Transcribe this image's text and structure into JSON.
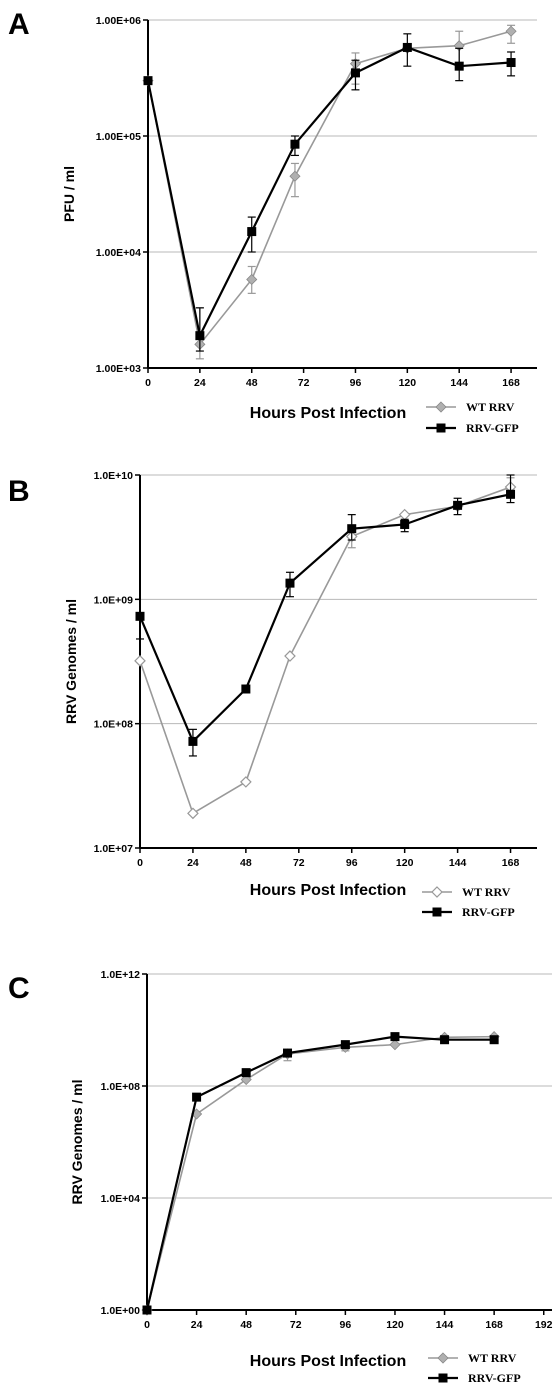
{
  "chart_data": [
    {
      "panel": "A",
      "type": "line",
      "y_scale": "log",
      "ylim": [
        1000,
        1000000
      ],
      "y_ticks": [
        1000,
        10000,
        100000,
        1000000
      ],
      "y_tick_labels": [
        "1.00E+03",
        "1.00E+04",
        "1.00E+05",
        "1.00E+06"
      ],
      "xlim": [
        0,
        180
      ],
      "x_ticks": [
        0,
        24,
        48,
        72,
        96,
        120,
        144,
        168
      ],
      "x_tick_labels": [
        "0",
        "24",
        "48",
        "72",
        "96",
        "120",
        "144",
        "168"
      ],
      "xlabel": "Hours Post Infection",
      "ylabel": "PFU / ml",
      "grid": true,
      "legend_position": "bottom-right",
      "series": [
        {
          "name": "WT RRV",
          "color": "#999999",
          "marker": "diamond",
          "x": [
            0,
            24,
            48,
            68,
            96,
            120,
            144,
            168
          ],
          "y": [
            300000,
            1600,
            5800,
            45000,
            420000,
            570000,
            600000,
            800000
          ],
          "err_low": [
            null,
            1200,
            4400,
            30000,
            280000,
            null,
            400000,
            630000
          ],
          "err_high": [
            null,
            3300,
            7500,
            58000,
            520000,
            null,
            800000,
            900000
          ]
        },
        {
          "name": "RRV-GFP",
          "color": "#000000",
          "marker": "square",
          "x": [
            0,
            24,
            48,
            68,
            96,
            120,
            144,
            168
          ],
          "y": [
            300000,
            1900,
            15000,
            85000,
            350000,
            580000,
            400000,
            430000
          ],
          "err_low": [
            null,
            1400,
            10000,
            68000,
            250000,
            400000,
            300000,
            330000
          ],
          "err_high": [
            null,
            3300,
            20000,
            100000,
            450000,
            760000,
            570000,
            530000
          ]
        }
      ]
    },
    {
      "panel": "B",
      "type": "line",
      "y_scale": "log",
      "ylim": [
        10000000,
        10000000000
      ],
      "y_ticks": [
        10000000,
        100000000,
        1000000000,
        10000000000
      ],
      "y_tick_labels": [
        "1.0E+07",
        "1.0E+08",
        "1.0E+09",
        "1.0E+10"
      ],
      "xlim": [
        0,
        180
      ],
      "x_ticks": [
        0,
        24,
        48,
        72,
        96,
        120,
        144,
        168
      ],
      "x_tick_labels": [
        "0",
        "24",
        "48",
        "72",
        "96",
        "120",
        "144",
        "168"
      ],
      "xlabel": "Hours Post Infection",
      "ylabel": "RRV Genomes / ml",
      "grid": true,
      "legend_position": "bottom-right",
      "series": [
        {
          "name": "WT RRV",
          "color": "#999999",
          "marker": "diamond-open",
          "x": [
            0,
            24,
            48,
            68,
            96,
            120,
            144,
            168
          ],
          "y": [
            320000000,
            19000000,
            34000000,
            350000000,
            3200000000,
            4800000000,
            5600000000,
            8000000000
          ],
          "err_low": [
            null,
            null,
            null,
            null,
            2600000000,
            null,
            null,
            6500000000
          ],
          "err_high": [
            null,
            null,
            null,
            null,
            3800000000,
            null,
            null,
            9500000000
          ]
        },
        {
          "name": "RRV-GFP",
          "color": "#000000",
          "marker": "square",
          "x": [
            0,
            24,
            48,
            68,
            96,
            120,
            144,
            168
          ],
          "y": [
            730000000,
            72000000,
            190000000,
            1350000000,
            3700000000,
            4000000000,
            5700000000,
            7000000000
          ],
          "err_low": [
            480000000,
            55000000,
            null,
            1050000000,
            3000000000,
            3500000000,
            4800000000,
            6000000000
          ],
          "err_high": [
            null,
            90000000,
            null,
            1650000000,
            4800000000,
            4400000000,
            6500000000,
            10000000000
          ]
        }
      ]
    },
    {
      "panel": "C",
      "type": "line",
      "y_scale": "log",
      "ylim": [
        1,
        1000000000000
      ],
      "y_ticks": [
        1,
        10000,
        100000000,
        1000000000000
      ],
      "y_tick_labels": [
        "1.0E+00",
        "1.0E+04",
        "1.0E+08",
        "1.0E+12"
      ],
      "xlim": [
        0,
        196
      ],
      "x_ticks": [
        0,
        24,
        48,
        72,
        96,
        120,
        144,
        168,
        192
      ],
      "x_tick_labels": [
        "0",
        "24",
        "48",
        "72",
        "96",
        "120",
        "144",
        "168",
        "192"
      ],
      "xlabel": "Hours Post Infection",
      "ylabel": "RRV Genomes / ml",
      "grid": true,
      "legend_position": "bottom-right",
      "series": [
        {
          "name": "WT RRV",
          "color": "#999999",
          "marker": "diamond",
          "x": [
            0,
            24,
            48,
            68,
            96,
            120,
            144,
            168
          ],
          "y": [
            1,
            10000000,
            170000000,
            1400000000,
            2400000000,
            3000000000,
            5500000000,
            5800000000
          ],
          "err_low": [
            null,
            null,
            null,
            800000000,
            1800000000,
            null,
            null,
            null
          ],
          "err_high": [
            null,
            null,
            null,
            2000000000,
            3000000000,
            null,
            null,
            null
          ]
        },
        {
          "name": "RRV-GFP",
          "color": "#000000",
          "marker": "square",
          "x": [
            0,
            24,
            48,
            68,
            96,
            120,
            144,
            168
          ],
          "y": [
            1,
            40000000,
            300000000,
            1500000000,
            3000000000,
            5800000000,
            4500000000,
            4500000000
          ],
          "err_low": [
            null,
            null,
            null,
            null,
            null,
            null,
            null,
            null
          ],
          "err_high": [
            null,
            null,
            null,
            null,
            null,
            null,
            null,
            null
          ]
        }
      ]
    }
  ]
}
